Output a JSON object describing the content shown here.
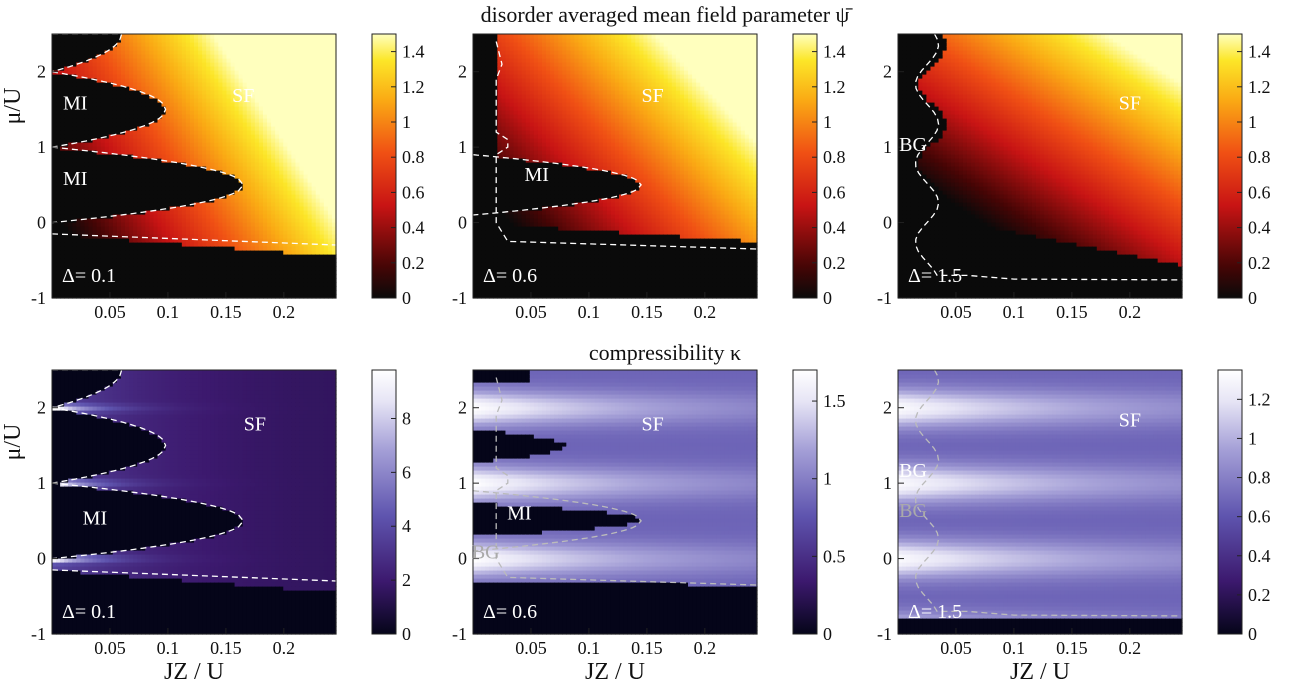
{
  "row_titles": [
    "disorder averaged mean field parameter ψ̄",
    "compressibility κ"
  ],
  "chart_data": [
    {
      "type": "heatmap",
      "quantity": "psi",
      "colormap": "hot",
      "delta_label": "Δ= 0.1",
      "ylabel": "μ/U",
      "xlabel": "",
      "xlim": [
        0,
        0.245
      ],
      "ylim": [
        -1,
        2.5
      ],
      "xticks": [
        "0.05",
        "0.1",
        "0.15",
        "0.2"
      ],
      "yticks": [
        "-1",
        "0",
        "1",
        "2"
      ],
      "colorbar": {
        "min": 0,
        "max": 1.5,
        "ticks": [
          "0",
          "0.2",
          "0.4",
          "0.6",
          "0.8",
          "1",
          "1.2",
          "1.4"
        ]
      },
      "region_labels": [
        {
          "text": "MI",
          "x": 0.02,
          "y": 1.5
        },
        {
          "text": "MI",
          "x": 0.02,
          "y": 0.5
        },
        {
          "text": "SF",
          "x": 0.165,
          "y": 1.6
        }
      ]
    },
    {
      "type": "heatmap",
      "quantity": "psi",
      "colormap": "hot",
      "delta_label": "Δ= 0.6",
      "ylabel": "",
      "xlabel": "",
      "xlim": [
        0,
        0.245
      ],
      "ylim": [
        -1,
        2.5
      ],
      "xticks": [
        "0.05",
        "0.1",
        "0.15",
        "0.2"
      ],
      "yticks": [
        "-1",
        "0",
        "1",
        "2"
      ],
      "colorbar": {
        "min": 0,
        "max": 1.5,
        "ticks": [
          "0",
          "0.2",
          "0.4",
          "0.6",
          "0.8",
          "1",
          "1.2",
          "1.4"
        ]
      },
      "region_labels": [
        {
          "text": "MI",
          "x": 0.055,
          "y": 0.55
        },
        {
          "text": "SF",
          "x": 0.155,
          "y": 1.6
        }
      ]
    },
    {
      "type": "heatmap",
      "quantity": "psi",
      "colormap": "hot",
      "delta_label": "Δ= 1.5",
      "ylabel": "",
      "xlabel": "",
      "xlim": [
        0,
        0.245
      ],
      "ylim": [
        -1,
        2.5
      ],
      "xticks": [
        "0.05",
        "0.1",
        "0.15",
        "0.2"
      ],
      "yticks": [
        "-1",
        "0",
        "1",
        "2"
      ],
      "colorbar": {
        "min": 0,
        "max": 1.5,
        "ticks": [
          "0",
          "0.2",
          "0.4",
          "0.6",
          "0.8",
          "1",
          "1.2",
          "1.4"
        ]
      },
      "region_labels": [
        {
          "text": "BG",
          "x": 0.013,
          "y": 0.95
        },
        {
          "text": "SF",
          "x": 0.2,
          "y": 1.5
        }
      ]
    },
    {
      "type": "heatmap",
      "quantity": "kappa",
      "colormap": "purples",
      "delta_label": "Δ= 0.1",
      "ylabel": "μ/U",
      "xlabel": "JZ / U",
      "xlim": [
        0,
        0.245
      ],
      "ylim": [
        -1,
        2.5
      ],
      "xticks": [
        "0.05",
        "0.1",
        "0.15",
        "0.2"
      ],
      "yticks": [
        "-1",
        "0",
        "1",
        "2"
      ],
      "colorbar": {
        "min": 0,
        "max": 9.8,
        "ticks": [
          "0",
          "2",
          "4",
          "6",
          "8"
        ]
      },
      "region_labels": [
        {
          "text": "MI",
          "x": 0.037,
          "y": 0.45
        },
        {
          "text": "SF",
          "x": 0.175,
          "y": 1.7
        }
      ]
    },
    {
      "type": "heatmap",
      "quantity": "kappa",
      "colormap": "purples",
      "delta_label": "Δ= 0.6",
      "ylabel": "",
      "xlabel": "JZ / U",
      "xlim": [
        0,
        0.245
      ],
      "ylim": [
        -1,
        2.5
      ],
      "xticks": [
        "0.05",
        "0.1",
        "0.15",
        "0.2"
      ],
      "yticks": [
        "-1",
        "0",
        "1",
        "2"
      ],
      "colorbar": {
        "min": 0,
        "max": 1.7,
        "ticks": [
          "0",
          "0.5",
          "1",
          "1.5"
        ]
      },
      "region_labels": [
        {
          "text": "MI",
          "x": 0.04,
          "y": 0.52
        },
        {
          "text": "BG",
          "x": 0.011,
          "y": 0.0,
          "muted": true
        },
        {
          "text": "SF",
          "x": 0.155,
          "y": 1.7
        }
      ]
    },
    {
      "type": "heatmap",
      "quantity": "kappa",
      "colormap": "purples",
      "delta_label": "Δ= 1.5",
      "ylabel": "",
      "xlabel": "JZ / U",
      "xlim": [
        0,
        0.245
      ],
      "ylim": [
        -1,
        2.5
      ],
      "xticks": [
        "0.05",
        "0.1",
        "0.15",
        "0.2"
      ],
      "yticks": [
        "-1",
        "0",
        "1",
        "2"
      ],
      "colorbar": {
        "min": 0,
        "max": 1.35,
        "ticks": [
          "0",
          "0.2",
          "0.4",
          "0.6",
          "0.8",
          "1",
          "1.2"
        ]
      },
      "region_labels": [
        {
          "text": "BG",
          "x": 0.013,
          "y": 1.08
        },
        {
          "text": "BG",
          "x": 0.013,
          "y": 0.55,
          "muted": true
        },
        {
          "text": "SF",
          "x": 0.2,
          "y": 1.75
        }
      ]
    }
  ]
}
